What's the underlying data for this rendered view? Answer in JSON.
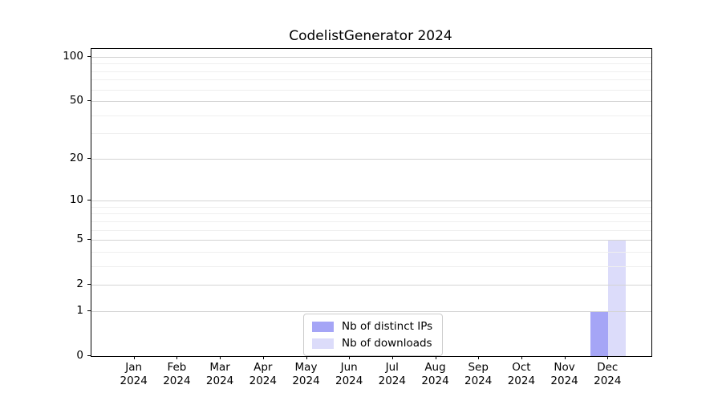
{
  "chart_data": {
    "type": "bar",
    "title": "CodelistGenerator 2024",
    "x_axis": {
      "year": "2024",
      "months": [
        "Jan",
        "Feb",
        "Mar",
        "Apr",
        "May",
        "Jun",
        "Jul",
        "Aug",
        "Sep",
        "Oct",
        "Nov",
        "Dec"
      ]
    },
    "series": [
      {
        "name": "Nb of distinct IPs",
        "color": "#a5a5f6",
        "values": [
          0,
          0,
          0,
          0,
          0,
          0,
          0,
          0,
          0,
          0,
          0,
          1
        ]
      },
      {
        "name": "Nb of downloads",
        "color": "#dcdcfa",
        "values": [
          0,
          0,
          0,
          0,
          0,
          0,
          0,
          0,
          0,
          0,
          0,
          5
        ]
      }
    ],
    "y_axis": {
      "scale": "log1p",
      "major_ticks": [
        0,
        1,
        2,
        5,
        10,
        20,
        50,
        100
      ],
      "minor_ticks": [
        3,
        4,
        6,
        7,
        8,
        9,
        30,
        40,
        60,
        70,
        80,
        90
      ],
      "range_top_value": 113
    },
    "grid": "horizontal",
    "legend_position": "lower-center-inside",
    "colors": {
      "grid_major": "#d4d4d4",
      "grid_minor": "#efefef",
      "spine": "#000000",
      "background": "#ffffff"
    }
  }
}
